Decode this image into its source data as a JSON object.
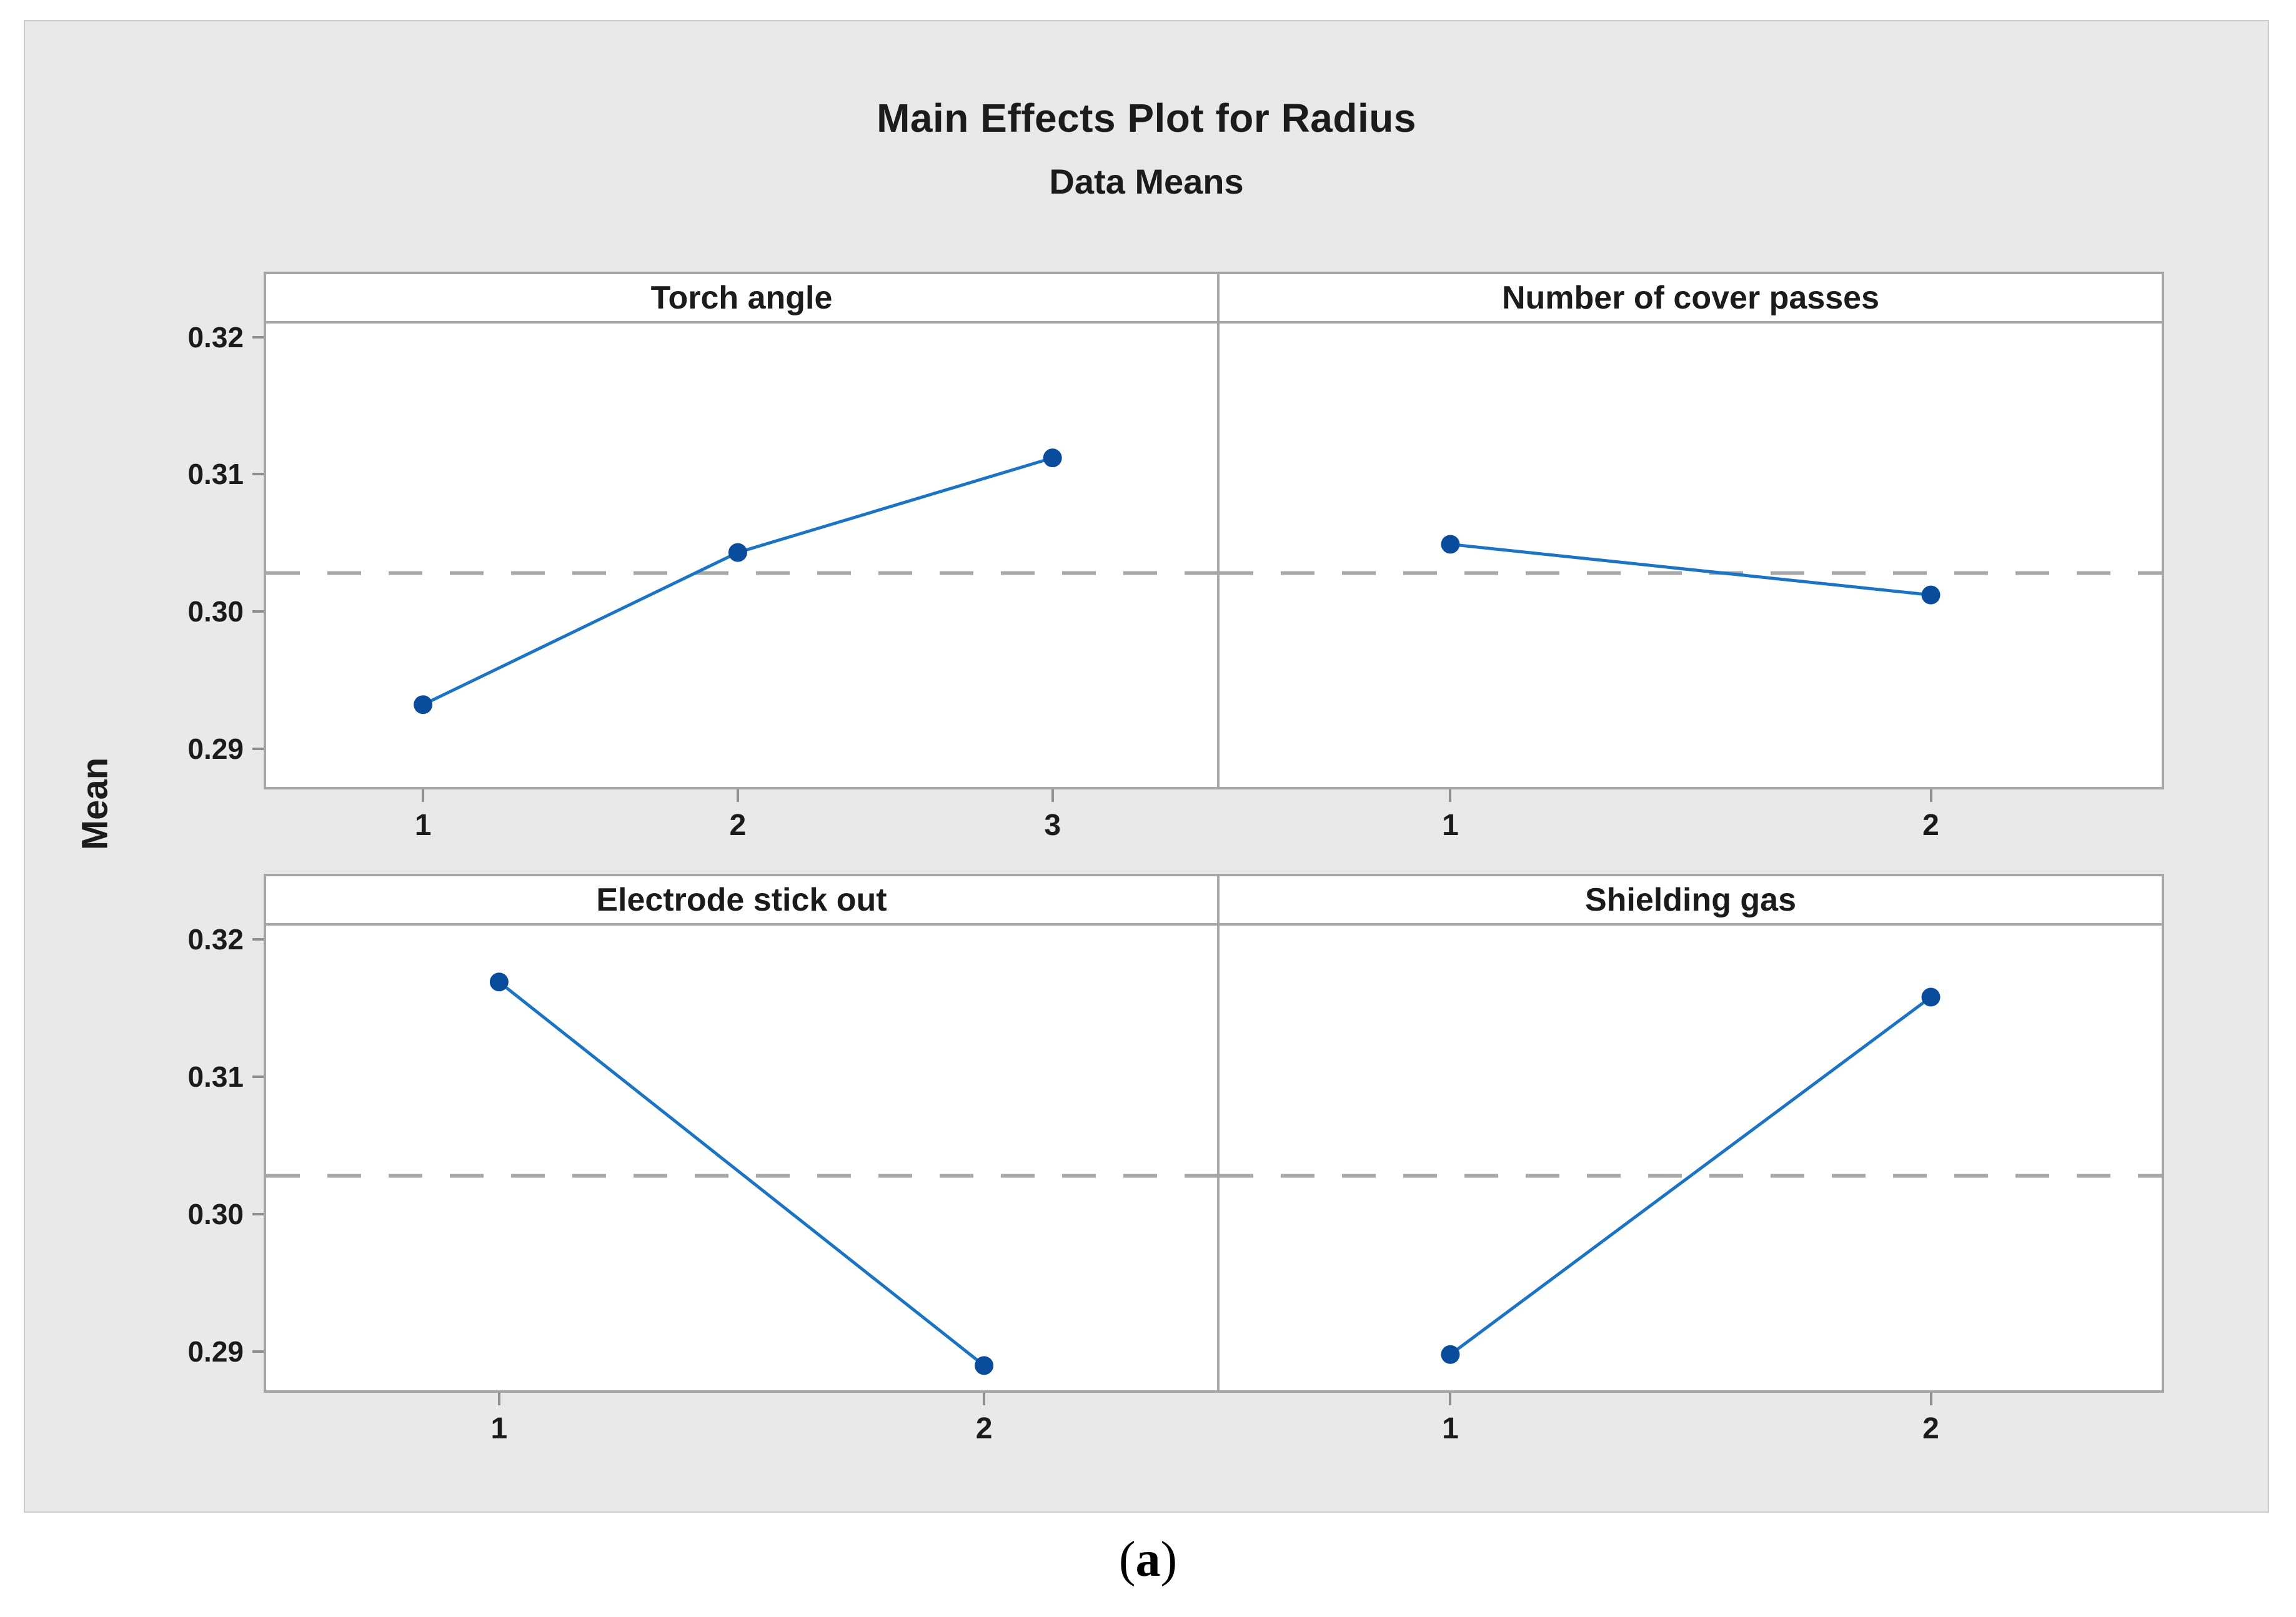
{
  "figure": {
    "title": "Main Effects Plot for Radius",
    "subtitle": "Data Means",
    "y_axis_label": "Mean"
  },
  "caption": {
    "open": "(",
    "letter": "a",
    "close": ")"
  },
  "chart_data": {
    "type": "line",
    "title": "Main Effects Plot for Radius",
    "subtitle": "Data Means",
    "ylabel": "Mean",
    "layout": "2x2 trellis panels, shared y axis, no grid",
    "ylim": [
      0.2872,
      0.321
    ],
    "y_ticks": {
      "labels": [
        "0.32",
        "0.31",
        "0.30",
        "0.29"
      ],
      "values": [
        0.32,
        0.31,
        0.3,
        0.29
      ]
    },
    "reference_mean": 0.3028,
    "panels": [
      {
        "label": "Torch angle",
        "x_ticks": [
          "1",
          "2",
          "3"
        ],
        "values": [
          0.2932,
          0.3043,
          0.3112
        ]
      },
      {
        "label": "Number of cover passes",
        "x_ticks": [
          "1",
          "2"
        ],
        "values": [
          0.3049,
          0.3012
        ]
      },
      {
        "label": "Electrode stick out",
        "x_ticks": [
          "1",
          "2"
        ],
        "values": [
          0.3169,
          0.289
        ]
      },
      {
        "label": "Shielding gas",
        "x_ticks": [
          "1",
          "2"
        ],
        "values": [
          0.2898,
          0.3158
        ]
      }
    ],
    "colors": {
      "figure_bg": "#e9e9e9",
      "panel_bg": "#ffffff",
      "panel_border": "#a6a6a6",
      "line": "#1b73c4",
      "marker": "#0a4c9c",
      "reference_line": "#a8a8a8",
      "tick": "#8f8f8f",
      "text": "#1b1b1b"
    }
  }
}
